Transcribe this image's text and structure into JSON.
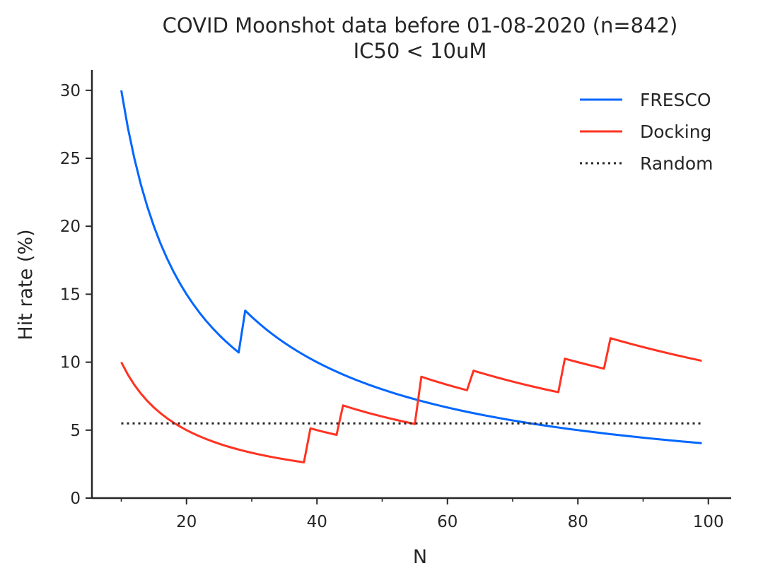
{
  "chart_data": {
    "type": "line",
    "title": "COVID Moonshot data before 01-08-2020 (n=842)",
    "subtitle": "IC50 < 10uM",
    "xlabel": "N",
    "ylabel": "Hit rate (%)",
    "xlim": [
      5.5,
      103.5
    ],
    "ylim": [
      0,
      31.5
    ],
    "xticks_major": [
      20,
      40,
      60,
      80,
      100
    ],
    "xticks_minor": [
      10,
      30,
      50,
      70,
      90
    ],
    "yticks": [
      0,
      5,
      10,
      15,
      20,
      25,
      30
    ],
    "grid": false,
    "legend_position": "top-right",
    "series": [
      {
        "name": "FRESCO",
        "color": "#0066ff",
        "style": "solid",
        "hits": [
          [
            10,
            3
          ],
          [
            29,
            4
          ]
        ]
      },
      {
        "name": "Docking",
        "color": "#ff3322",
        "style": "solid",
        "hits": [
          [
            10,
            1
          ],
          [
            39,
            2
          ],
          [
            44,
            3
          ],
          [
            56,
            5
          ],
          [
            64,
            6
          ],
          [
            78,
            8
          ],
          [
            85,
            10
          ]
        ]
      },
      {
        "name": "Random",
        "color": "#262626",
        "style": "dotted",
        "constant": 5.5
      }
    ],
    "x_range": [
      10,
      99
    ]
  }
}
